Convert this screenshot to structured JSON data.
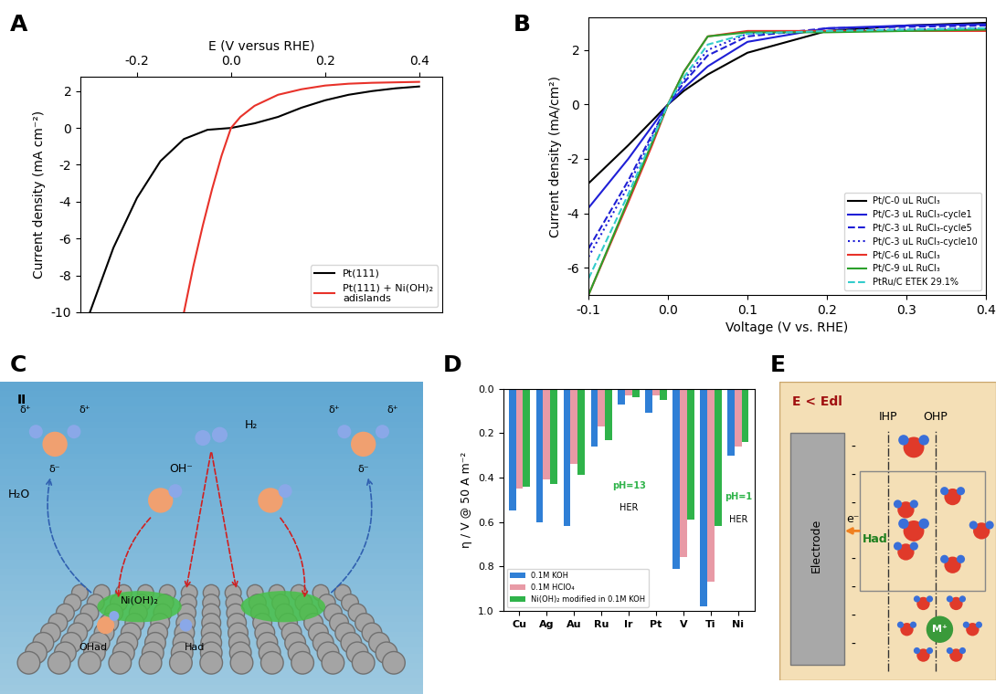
{
  "chart_data": [
    {
      "label": "A",
      "type": "line",
      "x_label": "E (V versus RHE)",
      "y_label": "Current density (mA cm⁻²)",
      "xlim": [
        -0.32,
        0.45
      ],
      "xticks": [
        -0.2,
        0.0,
        0.2,
        0.4
      ],
      "ylim": [
        -10,
        2.8
      ],
      "yticks": [
        -10,
        -8,
        -6,
        -4,
        -2,
        0,
        2
      ],
      "legend": "lower right",
      "series": [
        {
          "name": "Pt(111)",
          "color": "#000000",
          "line_style": "solid",
          "x": [
            -0.3,
            -0.25,
            -0.2,
            -0.15,
            -0.1,
            -0.05,
            0.0,
            0.05,
            0.1,
            0.15,
            0.2,
            0.25,
            0.3,
            0.35,
            0.4
          ],
          "values": [
            -10,
            -6.5,
            -3.8,
            -1.8,
            -0.6,
            -0.1,
            0,
            0.25,
            0.6,
            1.1,
            1.5,
            1.8,
            2.0,
            2.15,
            2.25
          ]
        },
        {
          "name": "Pt(111) + Ni(OH)₂\nadislands",
          "color": "#e8322a",
          "line_style": "solid",
          "x": [
            -0.1,
            -0.08,
            -0.06,
            -0.04,
            -0.02,
            0.0,
            0.02,
            0.05,
            0.1,
            0.15,
            0.2,
            0.25,
            0.3,
            0.4
          ],
          "values": [
            -10,
            -7.5,
            -5.3,
            -3.3,
            -1.5,
            0,
            0.6,
            1.2,
            1.8,
            2.1,
            2.3,
            2.4,
            2.45,
            2.5
          ]
        }
      ]
    },
    {
      "label": "B",
      "type": "line",
      "x_label": "Voltage (V vs. RHE)",
      "y_label": "Current density (mA/cm²)",
      "xlim": [
        -0.1,
        0.4
      ],
      "xticks": [
        -0.1,
        0.0,
        0.1,
        0.2,
        0.3,
        0.4
      ],
      "ylim": [
        -7,
        3.2
      ],
      "yticks": [
        -6,
        -4,
        -2,
        0,
        2
      ],
      "legend": "lower right",
      "x": [
        -0.1,
        -0.05,
        -0.02,
        0.0,
        0.02,
        0.05,
        0.1,
        0.2,
        0.3,
        0.4
      ],
      "series": [
        {
          "name": "Pt/C-0 uL RuCl₃",
          "color": "#000000",
          "line_style": "solid",
          "values": [
            -2.9,
            -1.5,
            -0.6,
            0,
            0.5,
            1.1,
            1.9,
            2.7,
            2.9,
            3.0
          ]
        },
        {
          "name": "Pt/C-3 uL RuCl₃-cycle1",
          "color": "#1f1fd6",
          "line_style": "solid",
          "values": [
            -3.8,
            -2.0,
            -0.8,
            0,
            0.6,
            1.4,
            2.3,
            2.8,
            2.9,
            2.95
          ]
        },
        {
          "name": "Pt/C-3 uL RuCl₃-cycle5",
          "color": "#1f1fd6",
          "line_style": "dashed",
          "values": [
            -5.3,
            -2.8,
            -1.1,
            0,
            0.8,
            1.8,
            2.5,
            2.8,
            2.85,
            2.9
          ]
        },
        {
          "name": "Pt/C-3 uL RuCl₃-cycle10",
          "color": "#1f1fd6",
          "line_style": "dotted",
          "values": [
            -5.6,
            -3.0,
            -1.2,
            0,
            0.9,
            2.0,
            2.6,
            2.7,
            2.75,
            2.8
          ]
        },
        {
          "name": "Pt/C-6 uL RuCl₃",
          "color": "#e8322a",
          "line_style": "solid",
          "values": [
            -7.0,
            -3.6,
            -1.5,
            0,
            1.2,
            2.5,
            2.7,
            2.7,
            2.7,
            2.7
          ]
        },
        {
          "name": "Pt/C-9 uL RuCl₃",
          "color": "#2ca02c",
          "line_style": "solid",
          "values": [
            -7.0,
            -3.5,
            -1.4,
            0,
            1.2,
            2.5,
            2.65,
            2.65,
            2.7,
            2.75
          ]
        },
        {
          "name": "PtRu/C ETEK 29.1%",
          "color": "#33cccc",
          "line_style": "dashed",
          "values": [
            -6.4,
            -3.3,
            -1.3,
            0,
            1.0,
            2.2,
            2.6,
            2.7,
            2.75,
            2.8
          ]
        }
      ]
    },
    {
      "label": "D",
      "type": "bar",
      "y_label": "η / V @ 50 A m⁻²",
      "categories": [
        "Cu",
        "Ag",
        "Au",
        "Ru",
        "Ir",
        "Pt",
        "V",
        "Ti",
        "Ni"
      ],
      "ylim": [
        1.0,
        0.0
      ],
      "yticks": [
        0.0,
        0.2,
        0.4,
        0.6,
        0.8,
        1.0
      ],
      "legend": "lower left",
      "annotations": [
        "pH=13",
        "HER",
        "pH=1",
        "HER"
      ],
      "series": [
        {
          "name": "0.1M KOH",
          "color": "#2f7fd6",
          "values": [
            0.55,
            0.6,
            0.62,
            0.26,
            0.07,
            0.11,
            0.81,
            0.98,
            0.3
          ]
        },
        {
          "name": "0.1M HClO₄",
          "color": "#e89aa6",
          "values": [
            0.45,
            0.41,
            0.34,
            0.17,
            0.03,
            0.03,
            0.76,
            0.87,
            0.26
          ]
        },
        {
          "name": "Ni(OH)₂ modified in 0.1M KOH",
          "color": "#2fb34a",
          "values": [
            0.44,
            0.43,
            0.39,
            0.23,
            0.04,
            0.05,
            0.59,
            0.62,
            0.24
          ]
        }
      ]
    }
  ],
  "diagrams": {
    "C": {
      "label": "C",
      "roman": "II",
      "h2": "H₂",
      "hydroxide": "OH⁻",
      "water": "H₂O",
      "partial_pos": "δ⁺",
      "partial_neg": "δ⁻",
      "nioh2": "Ni(OH)₂",
      "oh_ad": "OHad",
      "h_ad": "Had"
    },
    "E": {
      "label": "E",
      "condition": "E < Edl",
      "ihp": "IHP",
      "ohp": "OHP",
      "electrode": "Electrode",
      "electron": "e⁻",
      "h_ad": "Had",
      "cation": "M⁺",
      "charge": "-"
    }
  }
}
